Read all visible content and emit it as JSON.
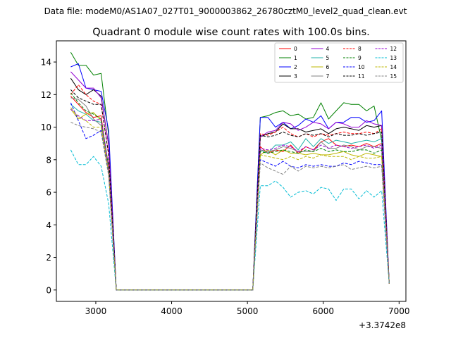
{
  "chart_data": {
    "type": "line",
    "suptitle": "Data file: modeM0/AS1A07_027T01_9000003862_26780cztM0_level2_quad_clean.evt",
    "title": "Quadrant 0 module wise count rates with 100.0s bins.",
    "xlabel": "",
    "ylabel": "",
    "offset_label": "+3.3742e8",
    "xlim": [
      2480,
      7090
    ],
    "ylim": [
      -0.7,
      15.3
    ],
    "xticks": [
      3000,
      4000,
      5000,
      6000,
      7000
    ],
    "xtick_labels": [
      "3000",
      "4000",
      "5000",
      "6000",
      "7000"
    ],
    "yticks": [
      0,
      2,
      4,
      6,
      8,
      10,
      12,
      14
    ],
    "ytick_labels": [
      "0",
      "2",
      "4",
      "6",
      "8",
      "10",
      "12",
      "14"
    ],
    "legend_position": "upper-right",
    "legend_columns": 4,
    "x": [
      2670,
      2770,
      2870,
      2970,
      3070,
      3170,
      3270,
      3370,
      3470,
      3570,
      3670,
      3770,
      3870,
      3970,
      4070,
      4170,
      4270,
      4370,
      4470,
      4570,
      4670,
      4770,
      4870,
      4970,
      5070,
      5170,
      5270,
      5370,
      5470,
      5570,
      5670,
      5770,
      5870,
      5970,
      6070,
      6170,
      6270,
      6370,
      6470,
      6570,
      6670,
      6770,
      6870
    ],
    "series": [
      {
        "name": "0",
        "color": "#ff0000",
        "dashed": false,
        "values": [
          11.9,
          11.4,
          10.9,
          10.6,
          10.7,
          7.2,
          0,
          0,
          0,
          0,
          0,
          0,
          0,
          0,
          0,
          0,
          0,
          0,
          0,
          0,
          0,
          0,
          0,
          0,
          0,
          8.8,
          8.4,
          8.6,
          8.5,
          8.9,
          8.4,
          8.8,
          8.6,
          9.1,
          9.3,
          8.9,
          8.8,
          8.9,
          8.8,
          9.0,
          8.8,
          9.0,
          0.4
        ]
      },
      {
        "name": "1",
        "color": "#008000",
        "dashed": false,
        "values": [
          14.6,
          13.8,
          13.8,
          13.2,
          13.3,
          9.5,
          0,
          0,
          0,
          0,
          0,
          0,
          0,
          0,
          0,
          0,
          0,
          0,
          0,
          0,
          0,
          0,
          0,
          0,
          0,
          10.6,
          10.7,
          10.9,
          11.0,
          10.7,
          10.8,
          10.5,
          10.6,
          11.5,
          10.5,
          11.0,
          11.5,
          11.4,
          11.4,
          11.0,
          11.3,
          9.2,
          0.4
        ]
      },
      {
        "name": "2",
        "color": "#0000ff",
        "dashed": false,
        "values": [
          13.7,
          13.9,
          12.4,
          12.3,
          12.2,
          9.8,
          0,
          0,
          0,
          0,
          0,
          0,
          0,
          0,
          0,
          0,
          0,
          0,
          0,
          0,
          0,
          0,
          0,
          0,
          0,
          10.6,
          10.6,
          10.0,
          10.3,
          9.9,
          10.1,
          10.5,
          10.3,
          10.7,
          9.9,
          10.3,
          10.3,
          10.6,
          10.6,
          10.3,
          10.4,
          11.0,
          0.4
        ]
      },
      {
        "name": "3",
        "color": "#000000",
        "dashed": false,
        "values": [
          13.0,
          12.3,
          12.0,
          12.3,
          11.9,
          8.9,
          0,
          0,
          0,
          0,
          0,
          0,
          0,
          0,
          0,
          0,
          0,
          0,
          0,
          0,
          0,
          0,
          0,
          0,
          0,
          9.4,
          9.6,
          9.7,
          10.2,
          9.9,
          9.9,
          9.7,
          9.8,
          9.9,
          9.6,
          9.9,
          10.0,
          9.9,
          9.8,
          10.1,
          10.0,
          10.1,
          0.4
        ]
      },
      {
        "name": "4",
        "color": "#9400d3",
        "dashed": false,
        "values": [
          13.4,
          12.9,
          12.4,
          12.4,
          11.8,
          8.9,
          0,
          0,
          0,
          0,
          0,
          0,
          0,
          0,
          0,
          0,
          0,
          0,
          0,
          0,
          0,
          0,
          0,
          0,
          0,
          9.4,
          9.7,
          9.8,
          10.3,
          10.2,
          9.8,
          10.0,
          10.3,
          10.2,
          9.9,
          10.3,
          10.2,
          10.0,
          10.0,
          10.4,
          10.2,
          10.1,
          0.4
        ]
      },
      {
        "name": "5",
        "color": "#20b2aa",
        "dashed": false,
        "values": [
          11.4,
          11.0,
          10.8,
          10.4,
          10.3,
          7.4,
          0,
          0,
          0,
          0,
          0,
          0,
          0,
          0,
          0,
          0,
          0,
          0,
          0,
          0,
          0,
          0,
          0,
          0,
          0,
          8.6,
          8.4,
          8.9,
          8.9,
          9.1,
          8.6,
          9.3,
          8.8,
          9.3,
          9.0,
          9.2,
          9.1,
          9.0,
          9.1,
          9.2,
          9.1,
          9.3,
          0.4
        ]
      },
      {
        "name": "6",
        "color": "#bdb700",
        "dashed": false,
        "values": [
          11.1,
          10.5,
          10.8,
          10.9,
          10.4,
          7.5,
          0,
          0,
          0,
          0,
          0,
          0,
          0,
          0,
          0,
          0,
          0,
          0,
          0,
          0,
          0,
          0,
          0,
          0,
          0,
          8.3,
          8.6,
          8.3,
          8.6,
          8.4,
          8.4,
          8.3,
          8.4,
          8.3,
          8.3,
          8.4,
          8.5,
          8.3,
          8.2,
          8.4,
          8.3,
          8.2,
          0.4
        ]
      },
      {
        "name": "7",
        "color": "#808080",
        "dashed": false,
        "values": [
          11.8,
          11.7,
          11.3,
          10.5,
          10.1,
          7.3,
          0,
          0,
          0,
          0,
          0,
          0,
          0,
          0,
          0,
          0,
          0,
          0,
          0,
          0,
          0,
          0,
          0,
          0,
          0,
          8.6,
          8.5,
          8.6,
          8.8,
          8.7,
          8.5,
          8.5,
          8.5,
          9.1,
          8.7,
          8.7,
          8.9,
          8.8,
          8.6,
          8.8,
          8.8,
          8.7,
          0.4
        ]
      },
      {
        "name": "8",
        "color": "#ff0000",
        "dashed": true,
        "values": [
          12.0,
          12.6,
          12.0,
          11.6,
          11.4,
          8.3,
          0,
          0,
          0,
          0,
          0,
          0,
          0,
          0,
          0,
          0,
          0,
          0,
          0,
          0,
          0,
          0,
          0,
          0,
          0,
          9.6,
          9.5,
          9.7,
          10.0,
          9.6,
          9.4,
          9.6,
          9.4,
          9.6,
          9.5,
          9.6,
          9.7,
          9.6,
          9.6,
          9.7,
          9.6,
          9.9,
          0.4
        ]
      },
      {
        "name": "9",
        "color": "#008000",
        "dashed": true,
        "values": [
          12.1,
          11.5,
          11.0,
          10.8,
          10.5,
          7.6,
          0,
          0,
          0,
          0,
          0,
          0,
          0,
          0,
          0,
          0,
          0,
          0,
          0,
          0,
          0,
          0,
          0,
          0,
          0,
          8.5,
          8.4,
          8.5,
          8.6,
          8.5,
          8.4,
          8.6,
          8.5,
          8.7,
          8.5,
          8.6,
          8.5,
          8.5,
          8.6,
          8.6,
          8.4,
          8.6,
          0.4
        ]
      },
      {
        "name": "10",
        "color": "#0000ff",
        "dashed": true,
        "values": [
          11.5,
          10.4,
          9.3,
          9.5,
          9.8,
          7.1,
          0,
          0,
          0,
          0,
          0,
          0,
          0,
          0,
          0,
          0,
          0,
          0,
          0,
          0,
          0,
          0,
          0,
          0,
          0,
          8.0,
          7.8,
          7.6,
          7.9,
          7.6,
          7.5,
          7.7,
          7.6,
          7.7,
          7.6,
          7.6,
          7.8,
          7.7,
          7.9,
          7.8,
          7.7,
          7.7,
          0.4
        ]
      },
      {
        "name": "11",
        "color": "#000000",
        "dashed": true,
        "values": [
          12.3,
          11.8,
          11.6,
          11.4,
          11.4,
          8.3,
          0,
          0,
          0,
          0,
          0,
          0,
          0,
          0,
          0,
          0,
          0,
          0,
          0,
          0,
          0,
          0,
          0,
          0,
          0,
          9.5,
          9.4,
          9.5,
          9.7,
          9.5,
          9.4,
          9.6,
          9.5,
          9.6,
          9.4,
          9.6,
          9.5,
          9.5,
          9.6,
          9.5,
          9.6,
          9.7,
          0.4
        ]
      },
      {
        "name": "12",
        "color": "#9400d3",
        "dashed": true,
        "values": [
          11.1,
          10.7,
          10.4,
          10.4,
          10.5,
          7.6,
          0,
          0,
          0,
          0,
          0,
          0,
          0,
          0,
          0,
          0,
          0,
          0,
          0,
          0,
          0,
          0,
          0,
          0,
          0,
          8.7,
          8.6,
          8.7,
          8.9,
          8.8,
          8.5,
          8.8,
          8.6,
          8.9,
          8.7,
          8.9,
          8.8,
          8.7,
          8.8,
          8.9,
          8.7,
          8.9,
          0.4
        ]
      },
      {
        "name": "13",
        "color": "#00bcd4",
        "dashed": true,
        "values": [
          8.6,
          7.7,
          7.7,
          8.2,
          7.6,
          5.3,
          0,
          0,
          0,
          0,
          0,
          0,
          0,
          0,
          0,
          0,
          0,
          0,
          0,
          0,
          0,
          0,
          0,
          0,
          0,
          6.4,
          6.4,
          6.7,
          6.3,
          5.7,
          6.0,
          6.1,
          5.9,
          6.3,
          6.2,
          5.5,
          6.2,
          6.2,
          5.6,
          6.1,
          5.7,
          6.1,
          0.4
        ]
      },
      {
        "name": "14",
        "color": "#bdb700",
        "dashed": true,
        "values": [
          11.2,
          10.6,
          10.4,
          10.0,
          10.0,
          7.2,
          0,
          0,
          0,
          0,
          0,
          0,
          0,
          0,
          0,
          0,
          0,
          0,
          0,
          0,
          0,
          0,
          0,
          0,
          0,
          8.3,
          8.2,
          8.1,
          8.0,
          8.2,
          8.0,
          8.2,
          8.1,
          8.3,
          8.2,
          8.2,
          8.2,
          8.0,
          8.2,
          8.1,
          8.1,
          8.2,
          0.4
        ]
      },
      {
        "name": "15",
        "color": "#808080",
        "dashed": true,
        "values": [
          10.3,
          10.1,
          10.0,
          9.9,
          9.7,
          7.0,
          0,
          0,
          0,
          0,
          0,
          0,
          0,
          0,
          0,
          0,
          0,
          0,
          0,
          0,
          0,
          0,
          0,
          0,
          0,
          7.8,
          7.5,
          7.3,
          7.1,
          7.6,
          7.3,
          7.6,
          7.5,
          7.6,
          7.5,
          7.6,
          7.7,
          7.4,
          7.5,
          7.6,
          7.5,
          7.6,
          0.4
        ]
      }
    ]
  }
}
